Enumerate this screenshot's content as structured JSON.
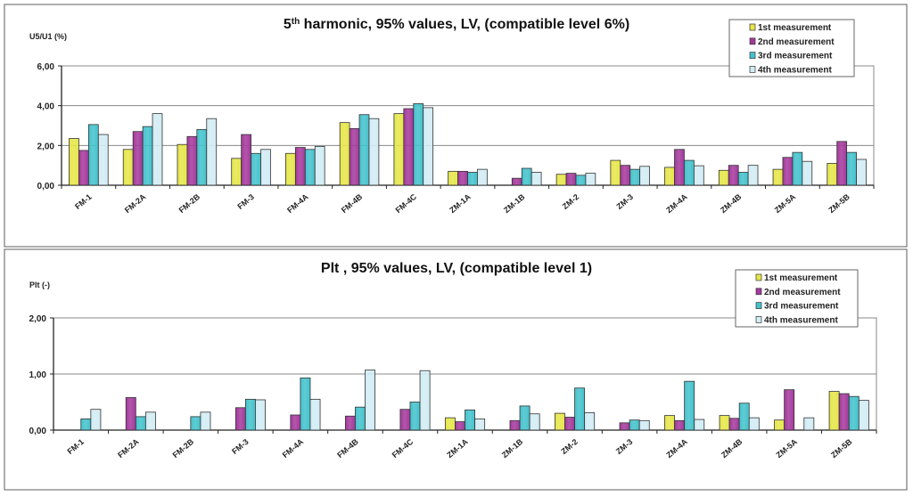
{
  "colors": [
    "#e6e64a",
    "#a4399c",
    "#44c2cc",
    "#d2ecf4"
  ],
  "chart_data": [
    {
      "type": "bar",
      "title_main": "5",
      "title_sup": "th",
      "title_rest": " harmonic, 95% values, LV, (compatible level 6%)",
      "ylabel": "U5/U1 (%)",
      "ylim": [
        0,
        6
      ],
      "yticks": [
        "0,00",
        "2,00",
        "4,00",
        "6,00"
      ],
      "ytick_values": [
        0,
        2,
        4,
        6
      ],
      "grid": true,
      "legend_position": "top-right",
      "categories": [
        "FM-1",
        "FM-2A",
        "FM-2B",
        "FM-3",
        "FM-4A",
        "FM-4B",
        "FM-4C",
        "ZM-1A",
        "ZM-1B",
        "ZM-2",
        "ZM-3",
        "ZM-4A",
        "ZM-4B",
        "ZM-5A",
        "ZM-5B"
      ],
      "series": [
        {
          "name": "1st measurement",
          "values": [
            2.35,
            1.8,
            2.05,
            1.35,
            1.6,
            3.15,
            3.6,
            0.7,
            0,
            0.55,
            1.25,
            0.9,
            0.75,
            0.8,
            1.1
          ]
        },
        {
          "name": "2nd measurement",
          "values": [
            1.75,
            2.7,
            2.45,
            2.55,
            1.9,
            2.85,
            3.85,
            0.7,
            0.35,
            0.6,
            1.0,
            1.8,
            1.0,
            1.4,
            2.2
          ]
        },
        {
          "name": "3rd measurement",
          "values": [
            3.05,
            2.95,
            2.8,
            1.6,
            1.8,
            3.55,
            4.1,
            0.65,
            0.85,
            0.5,
            0.8,
            1.25,
            0.65,
            1.65,
            1.65
          ]
        },
        {
          "name": "4th measurement",
          "values": [
            2.55,
            3.6,
            3.35,
            1.8,
            1.95,
            3.35,
            3.9,
            0.8,
            0.65,
            0.6,
            0.95,
            0.98,
            1.0,
            1.2,
            1.3
          ]
        }
      ]
    },
    {
      "type": "bar",
      "title_main": "Plt",
      "title_sup": "",
      "title_rest": " , 95% values, LV, (compatible level 1)",
      "ylabel": "Plt (-)",
      "ylim": [
        0,
        2
      ],
      "yticks": [
        "0,00",
        "1,00",
        "2,00"
      ],
      "ytick_values": [
        0,
        1,
        2
      ],
      "grid": true,
      "legend_position": "top-right",
      "categories": [
        "FM-1",
        "FM-2A",
        "FM-2B",
        "FM-3",
        "FM-4A",
        "FM-4B",
        "FM-4C",
        "ZM-1A",
        "ZM-1B",
        "ZM-2",
        "ZM-3",
        "ZM-4A",
        "ZM-4B",
        "ZM-5A",
        "ZM-5B"
      ],
      "series": [
        {
          "name": "1st measurement",
          "values": [
            0,
            0,
            0,
            0,
            0,
            0,
            0,
            0.22,
            0,
            0.3,
            0,
            0.26,
            0.26,
            0.18,
            0.69
          ]
        },
        {
          "name": "2nd measurement",
          "values": [
            0,
            0.58,
            0,
            0.4,
            0.27,
            0.25,
            0.37,
            0.15,
            0.17,
            0.23,
            0.13,
            0.17,
            0.21,
            0.72,
            0.65
          ]
        },
        {
          "name": "3rd measurement",
          "values": [
            0.2,
            0.24,
            0.24,
            0.55,
            0.93,
            0.41,
            0.5,
            0.36,
            0.43,
            0.75,
            0.18,
            0.87,
            0.48,
            0,
            0.6
          ]
        },
        {
          "name": "4th measurement",
          "values": [
            0.37,
            0.32,
            0.32,
            0.54,
            0.55,
            1.07,
            1.06,
            0.2,
            0.29,
            0.31,
            0.17,
            0.19,
            0.22,
            0.22,
            0.53
          ]
        }
      ]
    }
  ]
}
